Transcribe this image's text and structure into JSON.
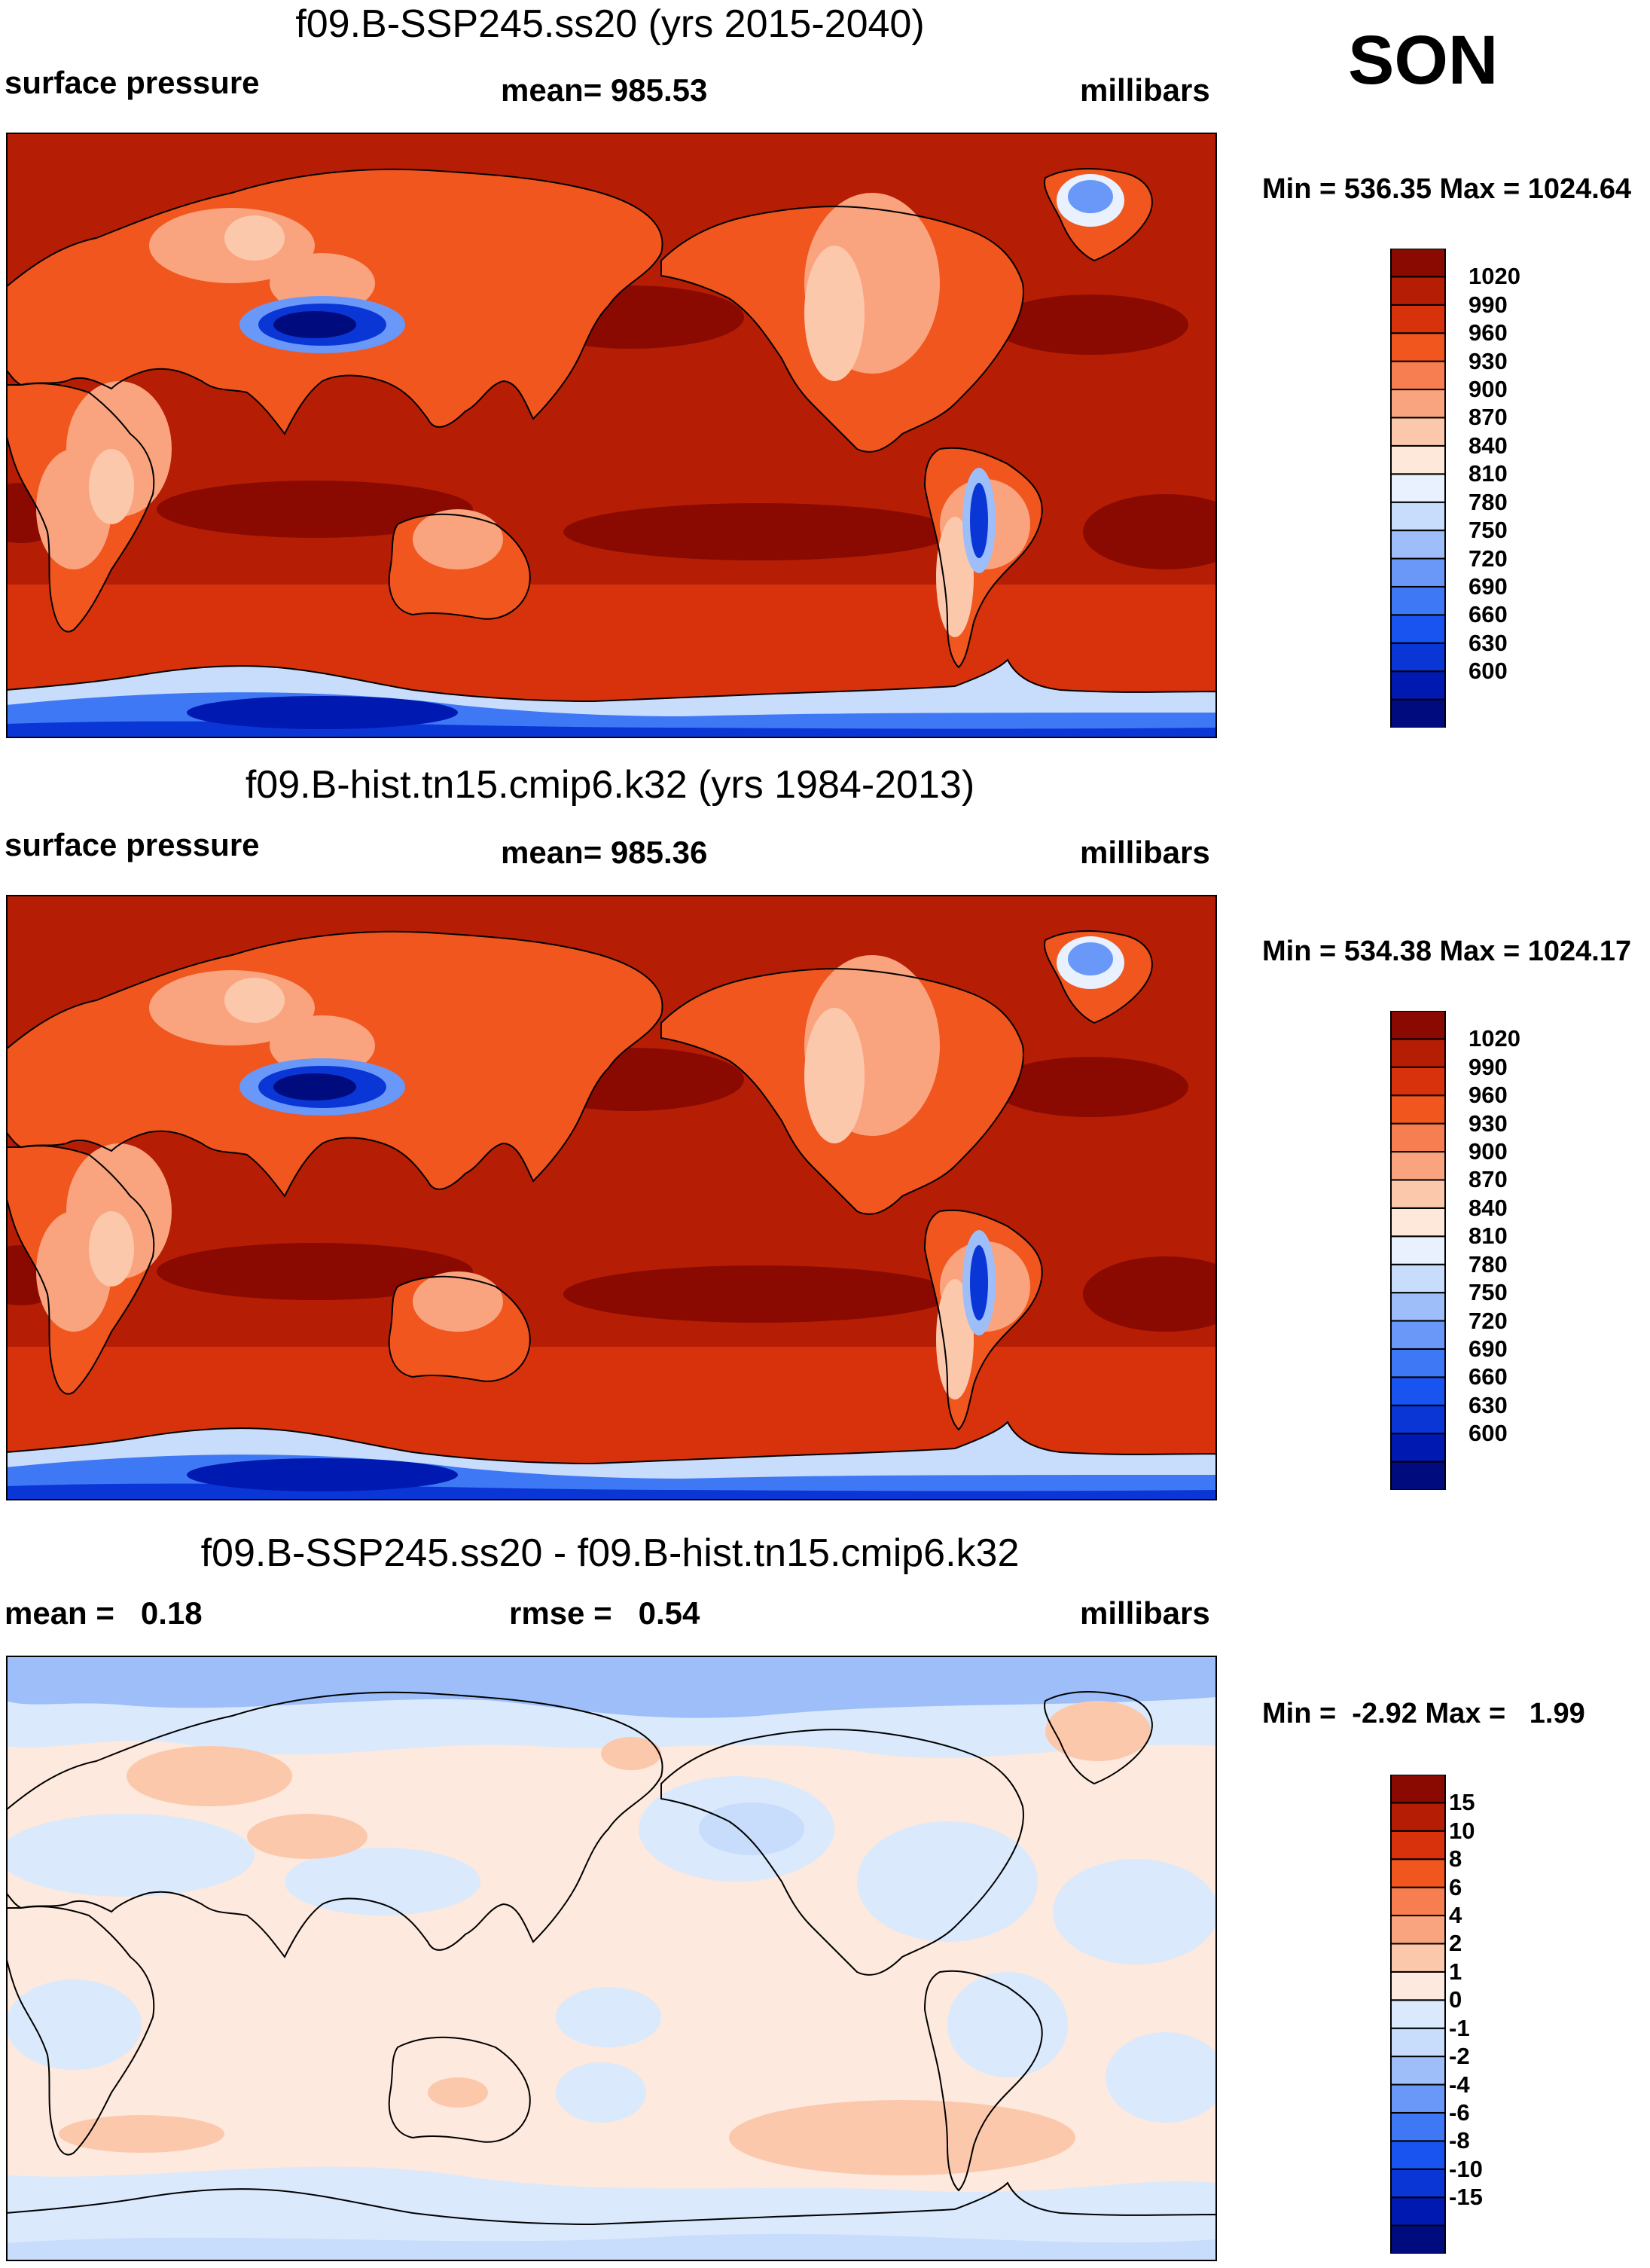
{
  "season": "SON",
  "palette_abs": [
    "#000c7d",
    "#0019b0",
    "#0a36d6",
    "#1a54f0",
    "#3f78f5",
    "#6a98f8",
    "#9dbef9",
    "#c8dcfb",
    "#e8f1fd",
    "#fde8d9",
    "#fcc8ac",
    "#f9a47f",
    "#f77e50",
    "#f0561e",
    "#d7320b",
    "#b51e05",
    "#8a0a02"
  ],
  "palette_diff": [
    "#000c7d",
    "#0019b0",
    "#0a36d6",
    "#1a54f0",
    "#3f78f5",
    "#6a98f8",
    "#9dbef9",
    "#c8dcfb",
    "#dbe9fc",
    "#fde9dd",
    "#fcc8ac",
    "#f9a47f",
    "#f77e50",
    "#f0561e",
    "#d7320b",
    "#b51e05",
    "#8a0a02"
  ],
  "panels": [
    {
      "title": "f09.B-SSP245.ss20 (yrs 2015-2040)",
      "left_label": "surface pressure",
      "center_label": "mean= 985.53",
      "right_label": "millibars",
      "minmax": "Min = 536.35 Max = 1024.64",
      "colorbar_labels": [
        "1020",
        "990",
        "960",
        "930",
        "900",
        "870",
        "840",
        "810",
        "780",
        "750",
        "720",
        "690",
        "660",
        "630",
        "600"
      ]
    },
    {
      "title": "f09.B-hist.tn15.cmip6.k32 (yrs 1984-2013)",
      "left_label": "surface pressure",
      "center_label": "mean= 985.36",
      "right_label": "millibars",
      "minmax": "Min = 534.38 Max = 1024.17",
      "colorbar_labels": [
        "1020",
        "990",
        "960",
        "930",
        "900",
        "870",
        "840",
        "810",
        "780",
        "750",
        "720",
        "690",
        "660",
        "630",
        "600"
      ]
    },
    {
      "title": "f09.B-SSP245.ss20 - f09.B-hist.tn15.cmip6.k32",
      "left_label": "mean =   0.18",
      "center_label": "rmse =   0.54",
      "right_label": "millibars",
      "minmax": "Min =  -2.92 Max =   1.99",
      "colorbar_labels": [
        "15",
        "10",
        "8",
        "6",
        "4",
        "2",
        "1",
        "0",
        "-1",
        "-2",
        "-4",
        "-6",
        "-8",
        "-10",
        "-15"
      ]
    }
  ]
}
